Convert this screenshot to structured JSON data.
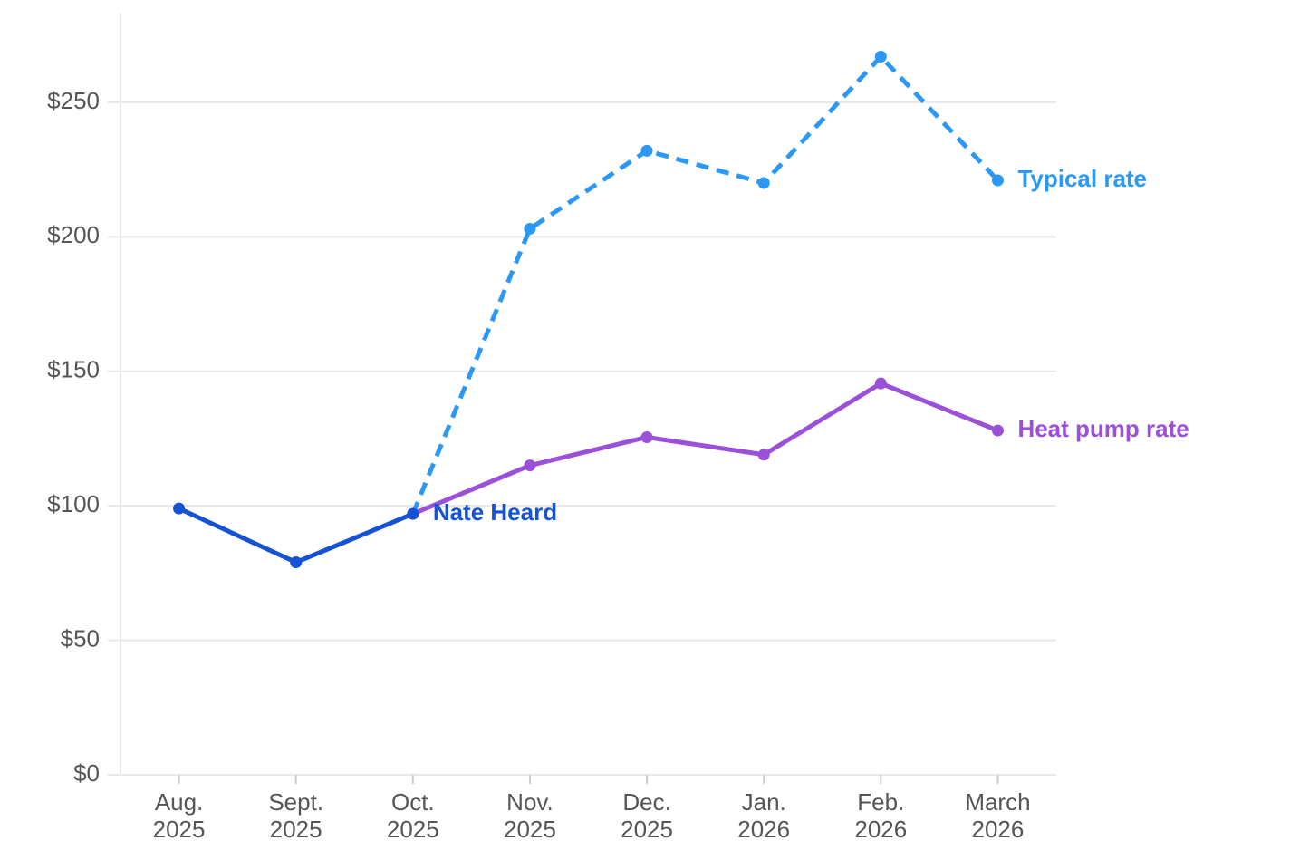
{
  "chart_data": {
    "type": "line",
    "categories": [
      "Aug. 2025",
      "Sept. 2025",
      "Oct. 2025",
      "Nov. 2025",
      "Dec. 2025",
      "Jan. 2026",
      "Feb. 2026",
      "March 2026"
    ],
    "series": [
      {
        "name": "Typical rate",
        "color": "#2b98f5",
        "dashed": true,
        "values": [
          null,
          null,
          97,
          203,
          232,
          220,
          267,
          221
        ]
      },
      {
        "name": "Heat pump rate",
        "color": "#9a50d8",
        "dashed": false,
        "values": [
          null,
          null,
          97,
          115,
          125.5,
          119,
          145.5,
          128
        ]
      },
      {
        "name": "Nate Heard",
        "color": "#1652d6",
        "dashed": false,
        "values": [
          99,
          79,
          97,
          null,
          null,
          null,
          null,
          null
        ]
      }
    ],
    "ylim": [
      0,
      283
    ],
    "yticks": [
      {
        "value": 0,
        "label": "$0"
      },
      {
        "value": 50,
        "label": "$50"
      },
      {
        "value": 100,
        "label": "$100"
      },
      {
        "value": 150,
        "label": "$150"
      },
      {
        "value": 200,
        "label": "$200"
      },
      {
        "value": 250,
        "label": "$250"
      }
    ],
    "grid": true
  }
}
